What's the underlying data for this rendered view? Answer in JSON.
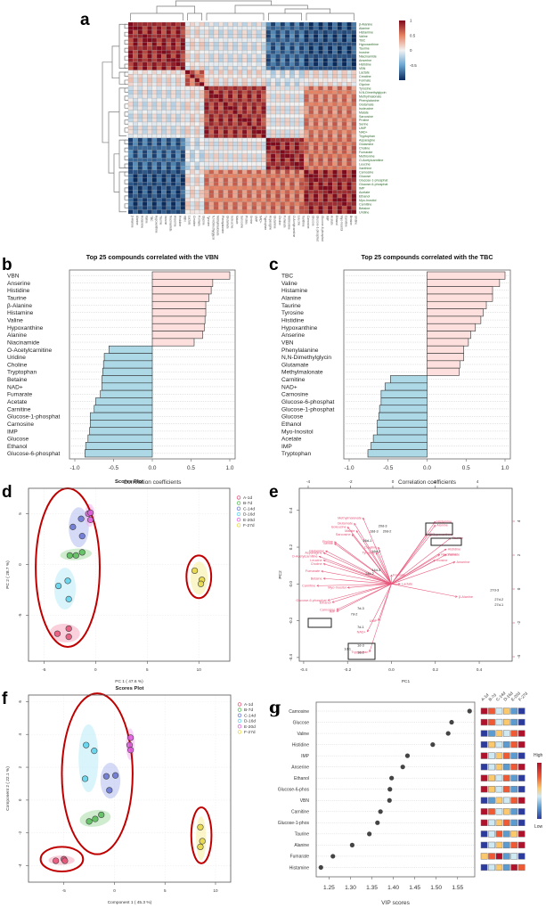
{
  "panel_labels": {
    "a": "a",
    "b": "b",
    "c": "c",
    "d": "d",
    "e": "e",
    "f": "f",
    "g": "g"
  },
  "chart_data": [
    {
      "id": "a",
      "type": "heatmap",
      "title": "",
      "description": "Hierarchically clustered correlation heatmap of metabolites",
      "row_labels": [
        "β-Alanine",
        "Alanine",
        "Histamine",
        "Valine",
        "TBC",
        "Hypoxanthine",
        "Taurine",
        "Inosine",
        "Niacinamide",
        "Anserine",
        "Histidine",
        "VBN",
        "Lactate",
        "Creatine",
        "Formate",
        "Glycine",
        "Tyrosine",
        "N,N-Dimethylglycin",
        "Methylmalonate",
        "Phenylalanine",
        "Glutamate",
        "Isoleucine",
        "Malate",
        "Sarcosine",
        "Proline",
        "Serine",
        "UMP",
        "NAD+",
        "Tryptophan",
        "Asparagine",
        "Glutamine",
        "Choline",
        "Fumarate",
        "Methionine",
        "O-Acetylcarnitine",
        "Leucine",
        "Xanthine",
        "Carnosine",
        "Glucose",
        "Glucose-1-phosphat",
        "Glucose-6-phosphat",
        "IMP",
        "Acetate",
        "Ethanol",
        "Myo-Inositol",
        "Carnitine",
        "Betaine",
        "Uridine"
      ],
      "row_clusters": [
        12,
        4,
        13,
        8,
        11
      ],
      "colorbar": {
        "ticks": [
          1,
          0.5,
          0,
          -0.5
        ],
        "tick_labels": [
          "1",
          "0.5",
          "0",
          "-0.5"
        ],
        "low_color": "#0b2a5c",
        "mid_color": "#f2f2f2",
        "high_color": "#7f0a1c"
      },
      "block_correlation": [
        [
          0.85,
          0.05,
          -0.05,
          -0.75,
          -0.85
        ],
        [
          0.05,
          0.6,
          0.05,
          -0.1,
          0.05
        ],
        [
          -0.05,
          0.05,
          0.8,
          0.0,
          0.5
        ],
        [
          -0.75,
          -0.1,
          0.0,
          0.85,
          0.55
        ],
        [
          -0.85,
          0.05,
          0.5,
          0.55,
          0.85
        ]
      ]
    },
    {
      "id": "b",
      "type": "bar",
      "orientation": "horizontal",
      "title": "Top 25 compounds correlated with the VBN",
      "xlabel": "Correlation coefficients",
      "ylabel": "",
      "xlim": [
        -1.0,
        1.0
      ],
      "xticks": [
        "-1.0",
        "-0.5",
        "0.0",
        "0.5",
        "1.0"
      ],
      "categories": [
        "VBN",
        "Anserine",
        "Histidine",
        "Taurine",
        "β-Alanine",
        "Histamine",
        "Valine",
        "Hypoxanthine",
        "Alanine",
        "Niacinamide",
        "O-Acetylcarnitine",
        "Uridine",
        "Choline",
        "Tryptophan",
        "Betaine",
        "NAD+",
        "Fumarate",
        "Acetate",
        "Carnitine",
        "Glucose-1-phosphat",
        "Carnosine",
        "IMP",
        "Glucose",
        "Ethanol",
        "Glucose-6-phosphat"
      ],
      "values": [
        1.0,
        0.78,
        0.76,
        0.73,
        0.69,
        0.69,
        0.68,
        0.67,
        0.65,
        0.54,
        -0.56,
        -0.62,
        -0.63,
        -0.64,
        -0.65,
        -0.65,
        -0.67,
        -0.73,
        -0.75,
        -0.8,
        -0.8,
        -0.81,
        -0.83,
        -0.86,
        -0.87
      ],
      "positive_color": "#fde0dd",
      "negative_color": "#add8e6"
    },
    {
      "id": "c",
      "type": "bar",
      "orientation": "horizontal",
      "title": "Top 25 compounds correlated with the TBC",
      "xlabel": "Correlation coefficients",
      "ylabel": "",
      "xlim": [
        -1.0,
        1.0
      ],
      "xticks": [
        "-1.0",
        "-0.5",
        "0.0",
        "0.5",
        "1.0"
      ],
      "categories": [
        "TBC",
        "Valine",
        "Histamine",
        "Alanine",
        "Taurine",
        "Tyrosine",
        "Histidine",
        "Hypoxanthine",
        "Anserine",
        "VBN",
        "Phenylalanine",
        "N,N-Dimethylglycin",
        "Glutamate",
        "Methylmalonate",
        "Carnitine",
        "NAD+",
        "Carnosine",
        "Glucose-6-phosphat",
        "Glucose-1-phosphat",
        "Glucose",
        "Ethanol",
        "Myo-Inositol",
        "Acetate",
        "IMP",
        "Tryptophan"
      ],
      "values": [
        1.0,
        0.93,
        0.84,
        0.84,
        0.76,
        0.72,
        0.69,
        0.62,
        0.56,
        0.53,
        0.47,
        0.47,
        0.42,
        0.41,
        -0.47,
        -0.54,
        -0.59,
        -0.59,
        -0.61,
        -0.62,
        -0.64,
        -0.64,
        -0.69,
        -0.72,
        -0.76
      ],
      "positive_color": "#fde0dd",
      "negative_color": "#add8e6"
    },
    {
      "id": "d",
      "type": "scatter",
      "title": "Scores Plot",
      "xlabel": "PC 1 ( 47.6 %)",
      "ylabel": "PC 2 ( 28.7 %)",
      "xlim": [
        -6.5,
        13
      ],
      "ylim": [
        -9.5,
        7.5
      ],
      "xticks": [
        -5,
        0,
        5,
        10
      ],
      "yticks": [
        5,
        0,
        -5
      ],
      "xtick_labels": [
        "-5",
        "0",
        "5",
        "10"
      ],
      "ytick_labels": [
        "5",
        "0",
        "-5"
      ],
      "legend": "top-right",
      "series": [
        {
          "name": "A-1d",
          "color": "#e8557a",
          "fill": "#f4a9bd",
          "points": [
            [
              -3.7,
              -6.8
            ],
            [
              -2.6,
              -6.3
            ],
            [
              -2.6,
              -7.1
            ]
          ]
        },
        {
          "name": "B-7d",
          "color": "#5cbf5c",
          "fill": "#a8dca8",
          "points": [
            [
              -2.5,
              0.9
            ],
            [
              -1.9,
              0.9
            ],
            [
              -1.3,
              1.2
            ]
          ]
        },
        {
          "name": "C-14d",
          "color": "#6a78d4",
          "fill": "#b3bbee",
          "points": [
            [
              -2.2,
              3.7
            ],
            [
              -1.4,
              4.5
            ],
            [
              -1.3,
              2.8
            ]
          ]
        },
        {
          "name": "D-16d",
          "color": "#5fd4ee",
          "fill": "#b9ecf7",
          "points": [
            [
              -3.6,
              -2.1
            ],
            [
              -2.7,
              -1.6
            ],
            [
              -2.6,
              -3.4
            ]
          ]
        },
        {
          "name": "E-20d",
          "color": "#e060e0",
          "fill": "#f3b3f3",
          "points": [
            [
              -0.7,
              5.0
            ],
            [
              -0.5,
              5.1
            ],
            [
              -0.5,
              4.4
            ]
          ]
        },
        {
          "name": "F-27d",
          "color": "#e8d84a",
          "fill": "#f7ef9f",
          "points": [
            [
              9.6,
              -0.6
            ],
            [
              10.3,
              -1.5
            ],
            [
              10.2,
              -1.9
            ]
          ]
        }
      ],
      "highlight_ellipses": [
        {
          "cx": -2.7,
          "cy": -0.3,
          "rx": 3.1,
          "ry": 7.8
        },
        {
          "cx": 10.0,
          "cy": -1.2,
          "rx": 1.2,
          "ry": 2.1
        }
      ]
    },
    {
      "id": "e",
      "type": "scatter",
      "subtype": "biplot",
      "title": "",
      "xlabel": "PC1",
      "ylabel": "PC2",
      "xlim": [
        -0.42,
        0.55
      ],
      "ylim": [
        -0.42,
        0.52
      ],
      "xticks": [
        "-0.4",
        "-0.2",
        "0.0",
        "0.2",
        "0.4"
      ],
      "yticks": [
        "0.4",
        "0.2",
        "0.0",
        "-0.2",
        "-0.4"
      ],
      "top_ticks": [
        "-4",
        "-2",
        "0",
        "2",
        "4"
      ],
      "right_ticks": [
        "4",
        "2",
        "0",
        "-2",
        "-4"
      ],
      "sample_labels": [
        {
          "label": "20d-3",
          "x": -0.04,
          "y": 0.31
        },
        {
          "label": "16d-3",
          "x": -0.08,
          "y": 0.28
        },
        {
          "label": "20d-2",
          "x": -0.02,
          "y": 0.28
        },
        {
          "label": "16d-1",
          "x": -0.11,
          "y": 0.23
        },
        {
          "label": "16d-2",
          "x": -0.07,
          "y": 0.17
        },
        {
          "label": "14d-3",
          "x": -0.07,
          "y": 0.07
        },
        {
          "label": "14d-2",
          "x": -0.1,
          "y": 0.05
        },
        {
          "label": "7d-3",
          "x": -0.14,
          "y": -0.14
        },
        {
          "label": "7d-2",
          "x": -0.17,
          "y": -0.17
        },
        {
          "label": "7d-1",
          "x": -0.14,
          "y": -0.24
        },
        {
          "label": "1d-3",
          "x": -0.14,
          "y": -0.34
        },
        {
          "label": "1d-1",
          "x": -0.2,
          "y": -0.36
        },
        {
          "label": "1d-2",
          "x": -0.14,
          "y": -0.38
        },
        {
          "label": "27d-3",
          "x": 0.47,
          "y": -0.04
        },
        {
          "label": "27d-2",
          "x": 0.49,
          "y": -0.09
        },
        {
          "label": "27d-1",
          "x": 0.49,
          "y": -0.12
        }
      ],
      "loadings": [
        {
          "label": "Methylmalonate",
          "x": -0.13,
          "y": 0.36
        },
        {
          "label": "Glutamate",
          "x": -0.17,
          "y": 0.33
        },
        {
          "label": "Isoleucine",
          "x": -0.2,
          "y": 0.31
        },
        {
          "label": "Malate",
          "x": -0.16,
          "y": 0.29
        },
        {
          "label": "Sarcosine",
          "x": -0.18,
          "y": 0.27
        },
        {
          "label": "Proline",
          "x": -0.26,
          "y": 0.23
        },
        {
          "label": "Serine",
          "x": -0.26,
          "y": 0.22
        },
        {
          "label": "Glutamine",
          "x": -0.3,
          "y": 0.18
        },
        {
          "label": "Asparagine",
          "x": -0.31,
          "y": 0.17
        },
        {
          "label": "O-Acetylcarnitine",
          "x": -0.33,
          "y": 0.15
        },
        {
          "label": "Leucine",
          "x": -0.31,
          "y": 0.13
        },
        {
          "label": "Choline",
          "x": -0.31,
          "y": 0.11
        },
        {
          "label": "Fumarate",
          "x": -0.32,
          "y": 0.07
        },
        {
          "label": "Betaine",
          "x": -0.31,
          "y": 0.03
        },
        {
          "label": "Carnitine",
          "x": -0.34,
          "y": -0.01
        },
        {
          "label": "Myo-Inositol",
          "x": -0.2,
          "y": -0.02
        },
        {
          "label": "Glucose-6-phosphat",
          "x": -0.29,
          "y": -0.09
        },
        {
          "label": "Ethanol",
          "x": -0.27,
          "y": -0.1
        },
        {
          "label": "Carnosine",
          "x": -0.25,
          "y": -0.14
        },
        {
          "label": "IMP",
          "x": -0.25,
          "y": -0.15
        },
        {
          "label": "UMP",
          "x": -0.06,
          "y": -0.2
        },
        {
          "label": "NAD+",
          "x": -0.11,
          "y": -0.26
        },
        {
          "label": "Tryptophan",
          "x": -0.1,
          "y": -0.37
        },
        {
          "label": "Lactate",
          "x": 0.04,
          "y": 0.0
        },
        {
          "label": "Formate",
          "x": 0.0,
          "y": 0.05
        },
        {
          "label": "Creatine",
          "x": -0.06,
          "y": 0.2
        },
        {
          "label": "Tyrosine",
          "x": -0.07,
          "y": 0.17
        },
        {
          "label": "TBC",
          "x": 0.16,
          "y": 0.27
        },
        {
          "label": "Histamine",
          "x": 0.2,
          "y": 0.34
        },
        {
          "label": "Alanine",
          "x": 0.2,
          "y": 0.32
        },
        {
          "label": "Hypoxanthine",
          "x": 0.18,
          "y": 0.27
        },
        {
          "label": "Taurine",
          "x": 0.27,
          "y": 0.25
        },
        {
          "label": "Histidine",
          "x": 0.25,
          "y": 0.19
        },
        {
          "label": "Niacinamide",
          "x": 0.22,
          "y": 0.16
        },
        {
          "label": "Valine",
          "x": 0.25,
          "y": 0.16
        },
        {
          "label": "Inosine",
          "x": 0.2,
          "y": 0.13
        },
        {
          "label": "Anserine",
          "x": 0.29,
          "y": 0.12
        },
        {
          "label": "β-Alanine",
          "x": 0.3,
          "y": -0.07
        }
      ],
      "boxed_labels": [
        "Histamine Alanine",
        "Hypoxanthine",
        "Carnosine IMP",
        "1d / Tryptophan"
      ],
      "arrow_color": "#e8557a"
    },
    {
      "id": "f",
      "type": "scatter",
      "title": "Scores Plot",
      "xlabel": "Component 1 ( 45.3 %)",
      "ylabel": "Component 2 ( 22.1 %)",
      "xlim": [
        -8.5,
        11.5
      ],
      "ylim": [
        -5,
        6.4
      ],
      "xticks": [
        -5,
        0,
        5,
        10
      ],
      "yticks": [
        6,
        4,
        2,
        0,
        -2,
        -4
      ],
      "xtick_labels": [
        "-5",
        "0",
        "5",
        "10"
      ],
      "ytick_labels": [
        "6",
        "4",
        "2",
        "0",
        "-2",
        "-4"
      ],
      "legend": "top-right",
      "series": [
        {
          "name": "A-1d",
          "color": "#e8557a",
          "fill": "#f4a9bd",
          "points": [
            [
              -5.8,
              -3.7
            ],
            [
              -5.0,
              -3.6
            ],
            [
              -4.9,
              -3.7
            ]
          ]
        },
        {
          "name": "B-7d",
          "color": "#5cbf5c",
          "fill": "#a8dca8",
          "points": [
            [
              -2.5,
              -1.3
            ],
            [
              -1.9,
              -1.15
            ],
            [
              -1.3,
              -0.9
            ]
          ]
        },
        {
          "name": "C-14d",
          "color": "#6a78d4",
          "fill": "#b3bbee",
          "points": [
            [
              -0.8,
              1.45
            ],
            [
              0.1,
              1.5
            ],
            [
              -0.5,
              0.6
            ]
          ]
        },
        {
          "name": "D-16d",
          "color": "#5fd4ee",
          "fill": "#b9ecf7",
          "points": [
            [
              -2.8,
              3.35
            ],
            [
              -2.0,
              3.0
            ],
            [
              -2.9,
              1.3
            ]
          ]
        },
        {
          "name": "E-20d",
          "color": "#e060e0",
          "fill": "#f3b3f3",
          "points": [
            [
              1.6,
              3.8
            ],
            [
              1.5,
              3.35
            ],
            [
              1.6,
              3.05
            ]
          ]
        },
        {
          "name": "F-27d",
          "color": "#e8d84a",
          "fill": "#f7ef9f",
          "points": [
            [
              8.5,
              -1.65
            ],
            [
              8.7,
              -2.5
            ],
            [
              8.5,
              -2.85
            ]
          ]
        }
      ],
      "highlight_ellipses": [
        {
          "cx": -1.7,
          "cy": 1.6,
          "rx": 3.5,
          "ry": 4.9
        },
        {
          "cx": -5.2,
          "cy": -3.6,
          "rx": 2.1,
          "ry": 0.75
        },
        {
          "cx": 8.6,
          "cy": -2.15,
          "rx": 1.0,
          "ry": 1.7
        }
      ]
    },
    {
      "id": "g",
      "type": "scatter",
      "subtype": "vip-dotplot",
      "title": "",
      "xlabel": "VIP scores",
      "ylabel": "",
      "xlim": [
        1.22,
        1.59
      ],
      "xticks": [
        "1.25",
        "1.30",
        "1.35",
        "1.40",
        "1.45",
        "1.50",
        "1.55"
      ],
      "categories": [
        "Carnosine",
        "Glucose",
        "Valine",
        "Histidine",
        "IMP",
        "Anserine",
        "Ethanol",
        "Glucose-6-phos",
        "VBN",
        "Carnitine",
        "Glucose-1-phos",
        "Taurine",
        "Alanine",
        "Fumarate",
        "Histamine"
      ],
      "values": [
        1.578,
        1.536,
        1.528,
        1.492,
        1.433,
        1.422,
        1.396,
        1.392,
        1.391,
        1.37,
        1.363,
        1.344,
        1.304,
        1.259,
        1.231
      ],
      "heat_columns": [
        "A-1d",
        "B-7d",
        "C-14d",
        "D-16d",
        "E-20d",
        "F-27d"
      ],
      "heat_levels": [
        [
          5,
          4,
          2,
          3,
          1,
          0
        ],
        [
          5,
          4,
          2,
          3,
          1,
          0
        ],
        [
          0,
          1,
          3,
          2,
          4,
          5
        ],
        [
          0,
          3,
          2,
          1,
          4,
          5
        ],
        [
          5,
          2,
          3,
          4,
          1,
          0
        ],
        [
          0,
          2,
          3,
          1,
          4,
          5
        ],
        [
          5,
          3,
          2,
          4,
          1,
          0
        ],
        [
          5,
          3,
          2,
          4,
          1,
          0
        ],
        [
          0,
          1,
          3,
          2,
          4,
          5
        ],
        [
          5,
          4,
          2,
          3,
          1,
          0
        ],
        [
          5,
          2,
          3,
          4,
          1,
          0
        ],
        [
          0,
          2,
          4,
          1,
          3,
          5
        ],
        [
          0,
          2,
          3,
          1,
          4,
          5
        ],
        [
          3,
          4,
          5,
          1,
          2,
          0
        ],
        [
          0,
          2,
          3,
          1,
          5,
          4
        ]
      ],
      "heat_palette": [
        "#2c3b9e",
        "#5b9bd0",
        "#cfe9f3",
        "#fbc96b",
        "#ef5a34",
        "#b0112b"
      ],
      "legend_high": "High",
      "legend_low": "Low"
    }
  ]
}
